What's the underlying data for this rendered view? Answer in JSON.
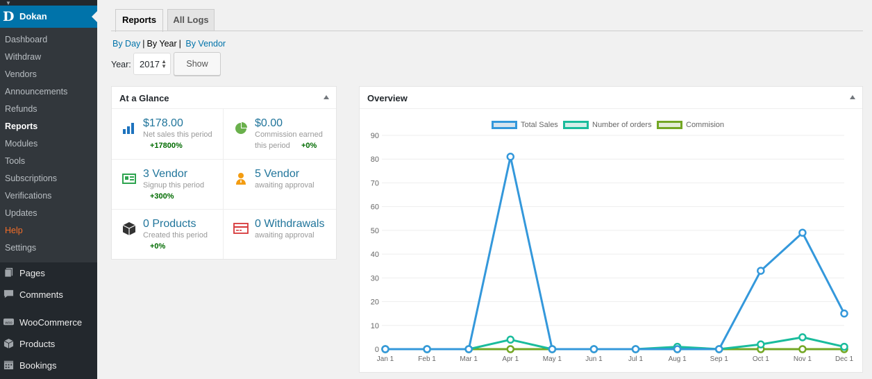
{
  "sidebar": {
    "brand": "Dokan",
    "logo_letter": "D",
    "submenu": [
      "Dashboard",
      "Withdraw",
      "Vendors",
      "Announcements",
      "Refunds",
      "Reports",
      "Modules",
      "Tools",
      "Subscriptions",
      "Verifications",
      "Updates",
      "Help",
      "Settings"
    ],
    "current": "Reports",
    "menu": [
      {
        "label": "Pages",
        "icon": "pages-icon"
      },
      {
        "label": "Comments",
        "icon": "comments-icon"
      },
      {
        "label": "WooCommerce",
        "icon": "woocommerce-icon"
      },
      {
        "label": "Products",
        "icon": "products-box-icon"
      },
      {
        "label": "Bookings",
        "icon": "calendar-icon"
      }
    ]
  },
  "tabs": [
    "Reports",
    "All Logs"
  ],
  "range": {
    "by_day": "By Day",
    "by_year": "By Year",
    "by_vendor": "By Vendor",
    "sep": "|"
  },
  "year": {
    "label": "Year:",
    "value": "2017",
    "button": "Show"
  },
  "glance": {
    "title": "At a Glance",
    "cells": [
      {
        "big": "$178.00",
        "small": "Net sales this period",
        "pct": "+17800%",
        "icon": "bar-chart-icon",
        "color": "#1e73be"
      },
      {
        "big": "$0.00",
        "small": "Commission earned",
        "small2": "this period",
        "pct": "+0%",
        "icon": "pie-chart-icon",
        "color": "#6ab04c"
      },
      {
        "big": "3 Vendor",
        "small": "Signup this period",
        "pct": "+300%",
        "icon": "id-card-icon",
        "color": "#2ea44f"
      },
      {
        "big": "5 Vendor",
        "small": "awaiting approval",
        "icon": "user-icon",
        "color": "#f39c12"
      },
      {
        "big": "0 Products",
        "small": "Created this period",
        "pct": "+0%",
        "icon": "box-icon",
        "color": "#333333"
      },
      {
        "big": "0 Withdrawals",
        "small": "awaiting approval",
        "icon": "credit-card-icon",
        "color": "#d63638"
      }
    ]
  },
  "overview": {
    "title": "Overview"
  },
  "chart_data": {
    "type": "line",
    "x": [
      "Jan 1",
      "Feb 1",
      "Mar 1",
      "Apr 1",
      "May 1",
      "Jun 1",
      "Jul 1",
      "Aug 1",
      "Sep 1",
      "Oct 1",
      "Nov 1",
      "Dec 1"
    ],
    "series": [
      {
        "name": "Total Sales",
        "color": "#3498db",
        "values": [
          0,
          0,
          0,
          81,
          0,
          0,
          0,
          0,
          0,
          33,
          49,
          15
        ]
      },
      {
        "name": "Number of orders",
        "color": "#1abc9c",
        "values": [
          0,
          0,
          0,
          4,
          0,
          0,
          0,
          1,
          0,
          2,
          5,
          1
        ]
      },
      {
        "name": "Commision",
        "color": "#73a724",
        "values": [
          0,
          0,
          0,
          0,
          0,
          0,
          0,
          0,
          0,
          0,
          0,
          0
        ]
      }
    ],
    "yticks": [
      0,
      10,
      20,
      30,
      40,
      50,
      60,
      70,
      80,
      90
    ],
    "ylim": [
      0,
      90
    ],
    "grid": true,
    "legend": "top"
  }
}
